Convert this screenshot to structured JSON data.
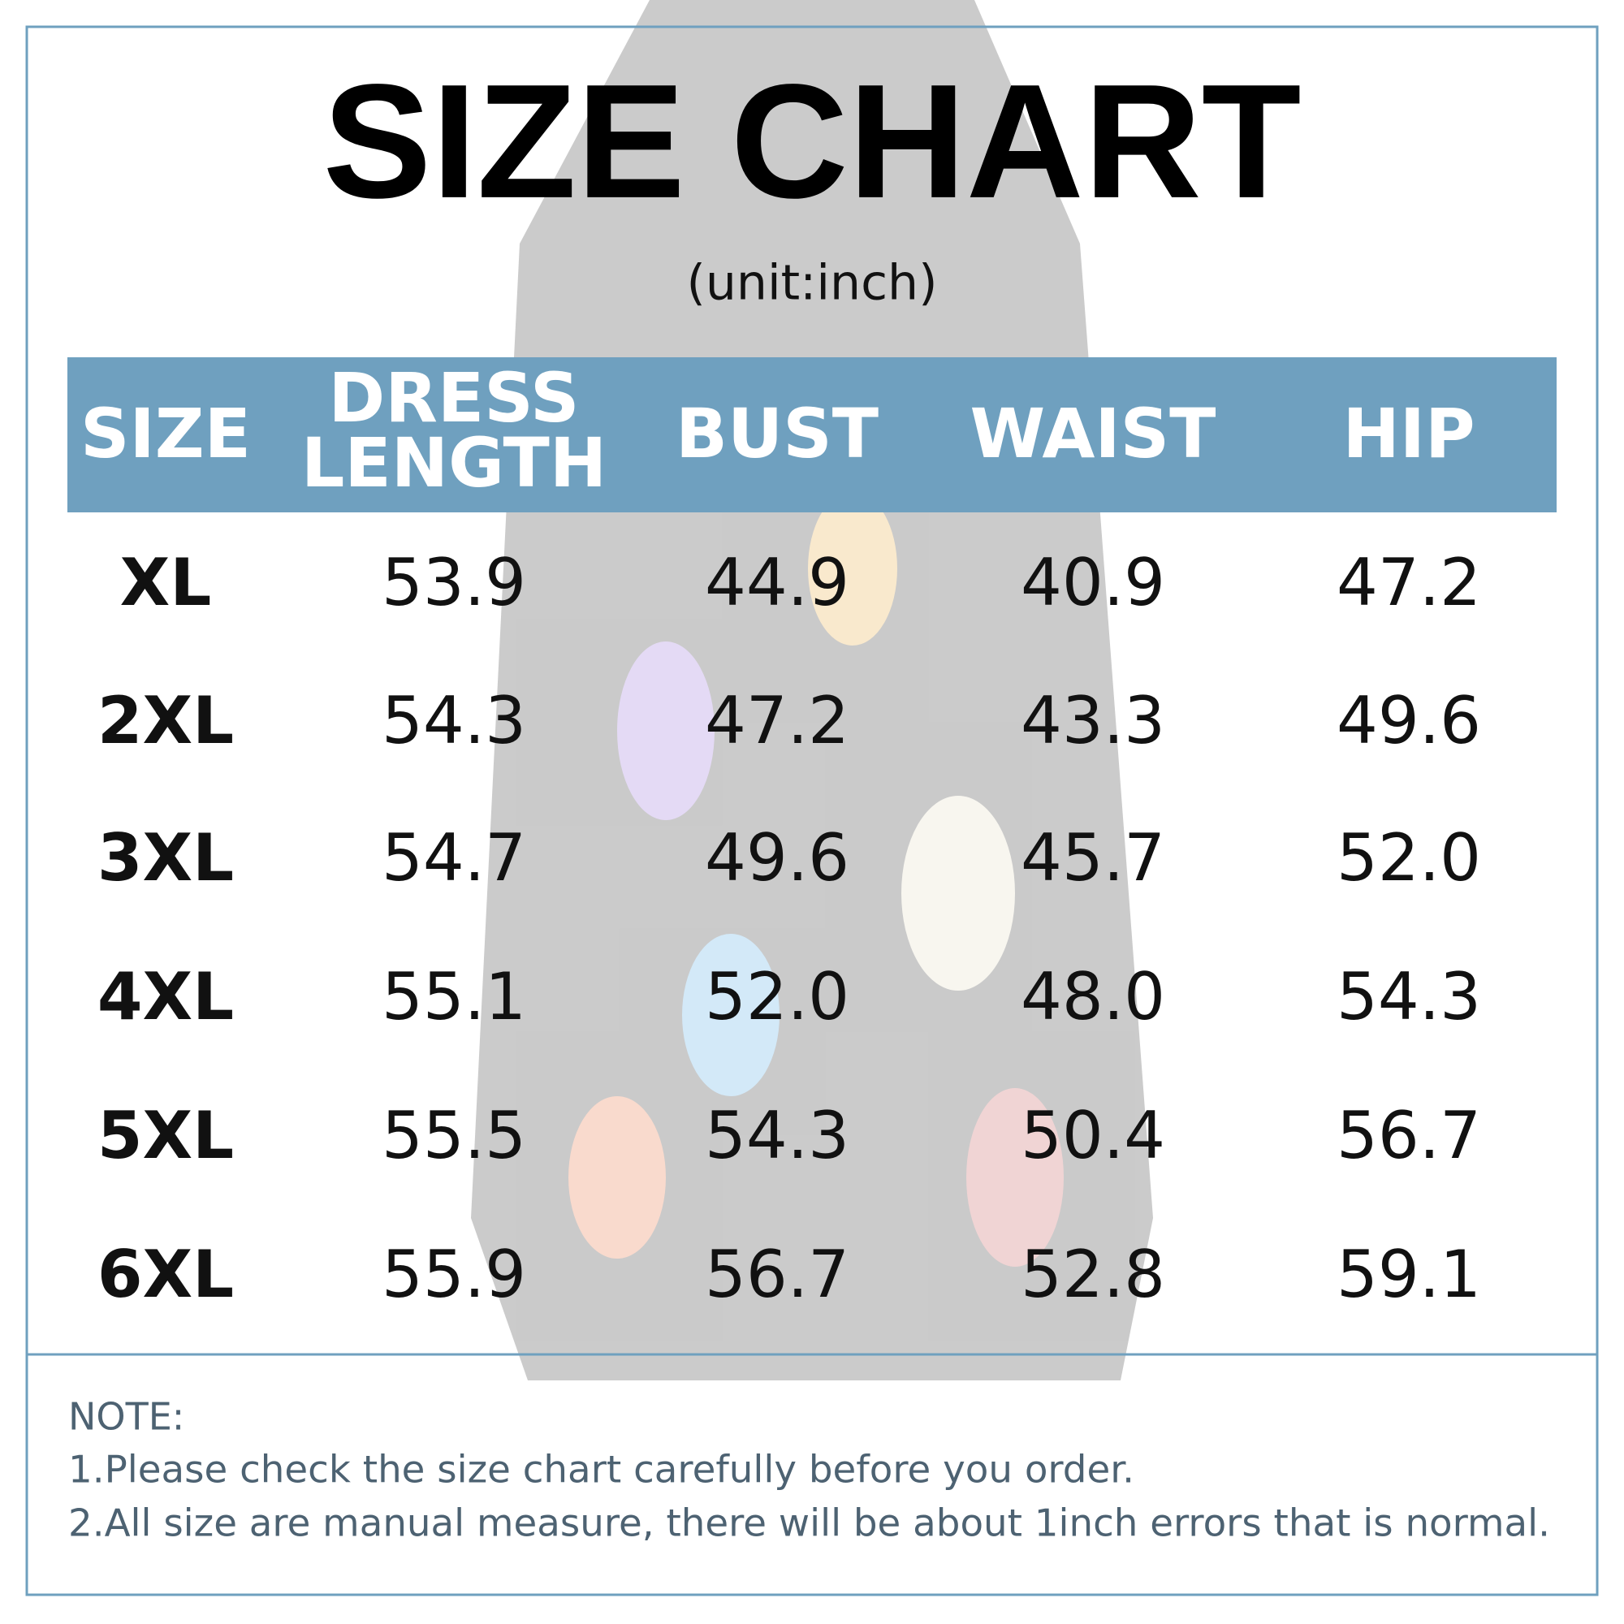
{
  "title": "SIZE CHART",
  "subtitle": "(unit:inch)",
  "table": {
    "header": [
      "SIZE",
      "DRESS LENGTH",
      "BUST",
      "WAIST",
      "HIP"
    ],
    "rows": [
      [
        "XL",
        "53.9",
        "44.9",
        "40.9",
        "47.2"
      ],
      [
        "2XL",
        "54.3",
        "47.2",
        "43.3",
        "49.6"
      ],
      [
        "3XL",
        "54.7",
        "49.6",
        "45.7",
        "52.0"
      ],
      [
        "4XL",
        "55.1",
        "52.0",
        "48.0",
        "54.3"
      ],
      [
        "5XL",
        "55.5",
        "54.3",
        "50.4",
        "56.7"
      ],
      [
        "6XL",
        "55.9",
        "56.7",
        "52.8",
        "59.1"
      ]
    ]
  },
  "note": {
    "heading": "NOTE:",
    "lines": [
      "1.Please check the size chart carefully before you order.",
      "2.All size are manual measure, there will be about 1inch errors that is normal."
    ]
  }
}
